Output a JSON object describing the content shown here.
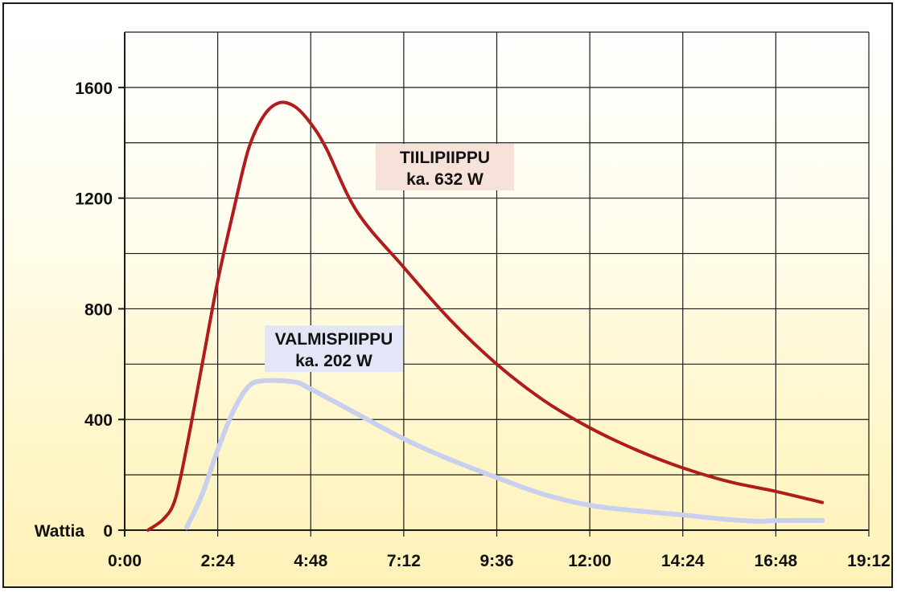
{
  "chart_data": {
    "type": "line",
    "title": "",
    "xlabel": "",
    "ylabel": "Wattia",
    "xlim": [
      "0:00",
      "19:12"
    ],
    "ylim": [
      0,
      1800
    ],
    "x_ticks": [
      "0:00",
      "2:24",
      "4:48",
      "7:12",
      "9:36",
      "12:00",
      "14:24",
      "16:48",
      "19:12"
    ],
    "y_ticks": [
      "0",
      "400",
      "800",
      "1200",
      "1600"
    ],
    "grid": true,
    "series": [
      {
        "name": "TIILIPIIPPU",
        "annotation": "ka. 632 W",
        "color": "#b01c1c",
        "points": [
          [
            "0:36",
            0
          ],
          [
            "1:00",
            40
          ],
          [
            "1:18",
            110
          ],
          [
            "1:36",
            300
          ],
          [
            "2:00",
            600
          ],
          [
            "2:24",
            900
          ],
          [
            "2:48",
            1150
          ],
          [
            "3:12",
            1380
          ],
          [
            "3:36",
            1500
          ],
          [
            "4:00",
            1545
          ],
          [
            "4:24",
            1530
          ],
          [
            "4:48",
            1470
          ],
          [
            "5:12",
            1380
          ],
          [
            "6:00",
            1150
          ],
          [
            "7:12",
            950
          ],
          [
            "8:24",
            760
          ],
          [
            "9:36",
            600
          ],
          [
            "10:48",
            470
          ],
          [
            "12:00",
            370
          ],
          [
            "13:12",
            290
          ],
          [
            "14:24",
            225
          ],
          [
            "15:36",
            175
          ],
          [
            "16:48",
            140
          ],
          [
            "18:00",
            100
          ]
        ]
      },
      {
        "name": "VALMISPIIPPU",
        "annotation": "ka. 202 W",
        "color": "#c9d0ee",
        "points": [
          [
            "1:36",
            10
          ],
          [
            "2:00",
            130
          ],
          [
            "2:24",
            290
          ],
          [
            "2:48",
            430
          ],
          [
            "3:12",
            520
          ],
          [
            "3:36",
            540
          ],
          [
            "4:24",
            535
          ],
          [
            "4:48",
            510
          ],
          [
            "6:00",
            420
          ],
          [
            "7:12",
            330
          ],
          [
            "8:24",
            255
          ],
          [
            "9:36",
            190
          ],
          [
            "10:48",
            130
          ],
          [
            "12:00",
            90
          ],
          [
            "13:12",
            70
          ],
          [
            "14:24",
            55
          ],
          [
            "15:36",
            38
          ],
          [
            "16:24",
            32
          ],
          [
            "16:48",
            35
          ],
          [
            "18:00",
            35
          ]
        ]
      }
    ]
  }
}
